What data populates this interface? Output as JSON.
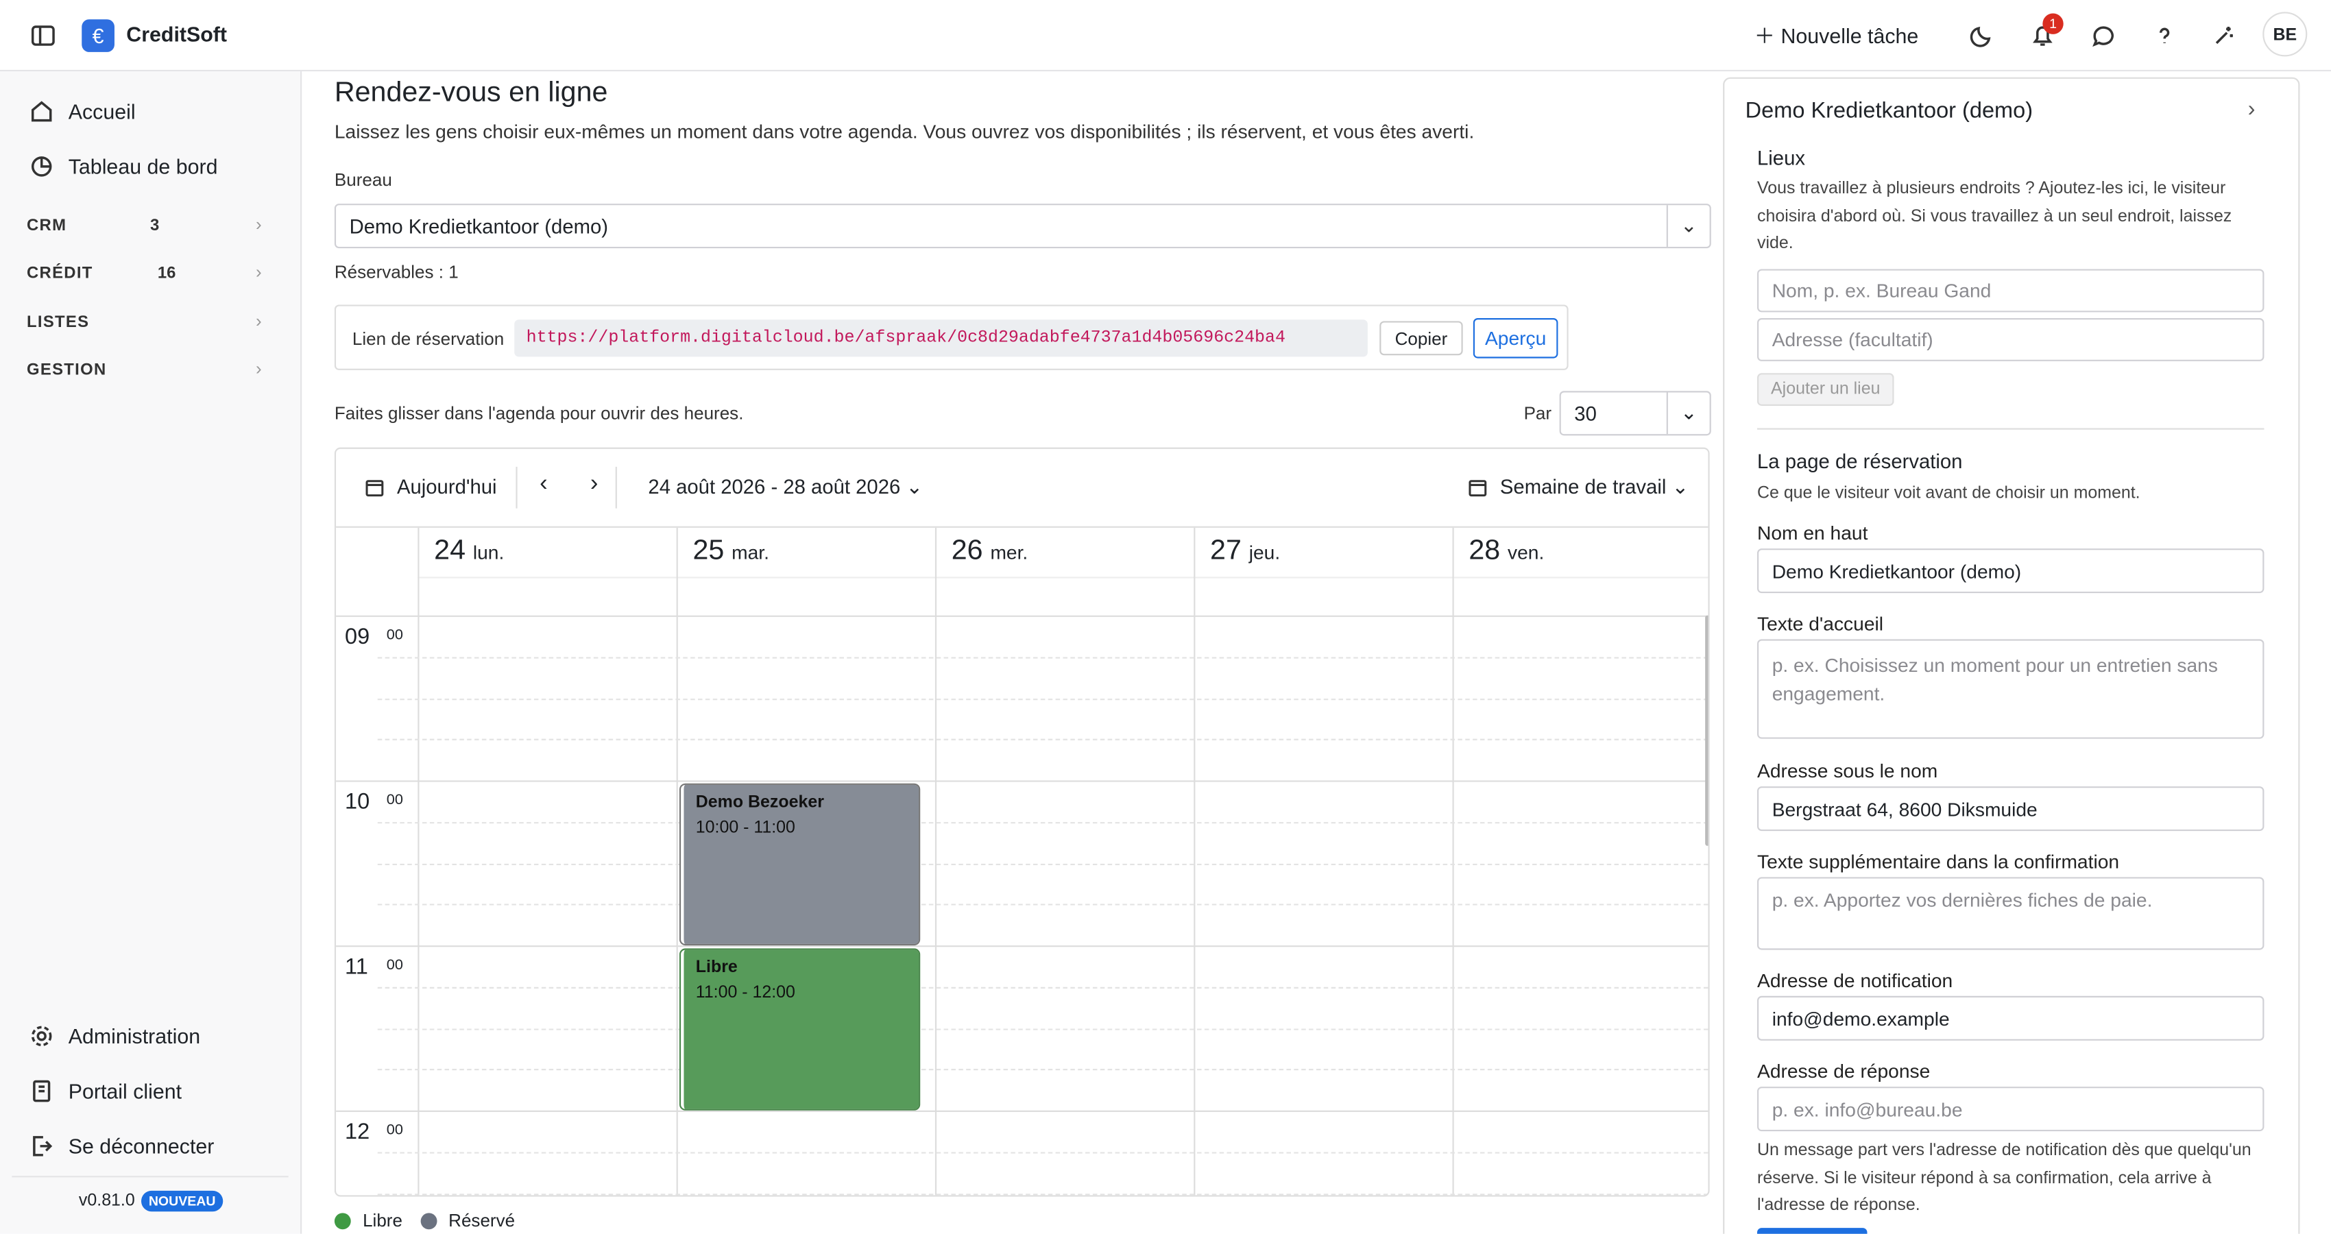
{
  "topbar": {
    "brand": "CreditSoft",
    "new_task": "Nouvelle tâche",
    "notifications": "1",
    "avatar": "BE"
  },
  "sidebar": {
    "items": [
      "Accueil",
      "Tableau de bord"
    ],
    "groups": [
      {
        "label": "CRM",
        "count": 3
      },
      {
        "label": "CRÉDIT",
        "count": 16
      },
      {
        "label": "LISTES"
      },
      {
        "label": "GESTION"
      }
    ],
    "bottom": [
      "Administration",
      "Portail client",
      "Se déconnecter"
    ],
    "version": "v0.81.0",
    "badge": "NOUVEAU"
  },
  "main": {
    "title": "Rendez-vous en ligne",
    "intro": "Laissez les gens choisir eux-mêmes un moment dans votre agenda. Vous ouvrez vos disponibilités ; ils réservent, et vous êtes averti.",
    "office_label": "Bureau",
    "office_value": "Demo Kredietkantoor (demo)",
    "bookable": "Réservables : 1",
    "link_label": "Lien de réservation",
    "link_url": "https://platform.digitalcloud.be/afspraak/0c8d29adabfe4737a1d4b05696c24ba4",
    "copy": "Copier",
    "preview": "Aperçu",
    "drag_hint": "Faites glisser dans l'agenda pour ouvrir des heures.",
    "per_label": "Par",
    "per_value": "30",
    "calendar": {
      "today": "Aujourd'hui",
      "range": "24 août 2026 - 28 août 2026",
      "view": "Semaine de travail",
      "days": [
        {
          "num": "24",
          "name": "lun."
        },
        {
          "num": "25",
          "name": "mar."
        },
        {
          "num": "26",
          "name": "mer."
        },
        {
          "num": "27",
          "name": "jeu."
        },
        {
          "num": "28",
          "name": "ven."
        }
      ],
      "hours": [
        "09",
        "10",
        "11",
        "12"
      ],
      "minutes": "00",
      "events": [
        {
          "title": "Demo Bezoeker",
          "time": "10:00 - 11:00"
        },
        {
          "title": "Libre",
          "time": "11:00 - 12:00"
        }
      ]
    },
    "legend": [
      "Libre",
      "Réservé"
    ]
  },
  "panel": {
    "title": "Demo Kredietkantoor (demo)",
    "places_title": "Lieux",
    "places_help": "Vous travaillez à plusieurs endroits ? Ajoutez-les ici, le visiteur choisira d'abord où. Si vous travaillez à un seul endroit, laissez vide.",
    "place_name_ph": "Nom, p. ex. Bureau Gand",
    "place_addr_ph": "Adresse (facultatif)",
    "add_place": "Ajouter un lieu",
    "page_title": "La page de réservation",
    "page_help": "Ce que le visiteur voit avant de choisir un moment.",
    "fields": [
      {
        "label": "Nom en haut",
        "value": "Demo Kredietkantoor (demo)"
      },
      {
        "label": "Texte d'accueil",
        "placeholder": "p. ex. Choisissez un moment pour un entretien sans engagement."
      },
      {
        "label": "Adresse sous le nom",
        "value": "Bergstraat 64, 8600 Diksmuide"
      },
      {
        "label": "Texte supplémentaire dans la confirmation",
        "placeholder": "p. ex. Apportez vos dernières fiches de paie."
      },
      {
        "label": "Adresse de notification",
        "value": "info@demo.example"
      },
      {
        "label": "Adresse de réponse",
        "placeholder": "p. ex. info@bureau.be"
      }
    ],
    "footer_help": "Un message part vers l'adresse de notification dès que quelqu'un réserve. Si le visiteur répond à sa confirmation, cela arrive à l'adresse de réponse."
  }
}
